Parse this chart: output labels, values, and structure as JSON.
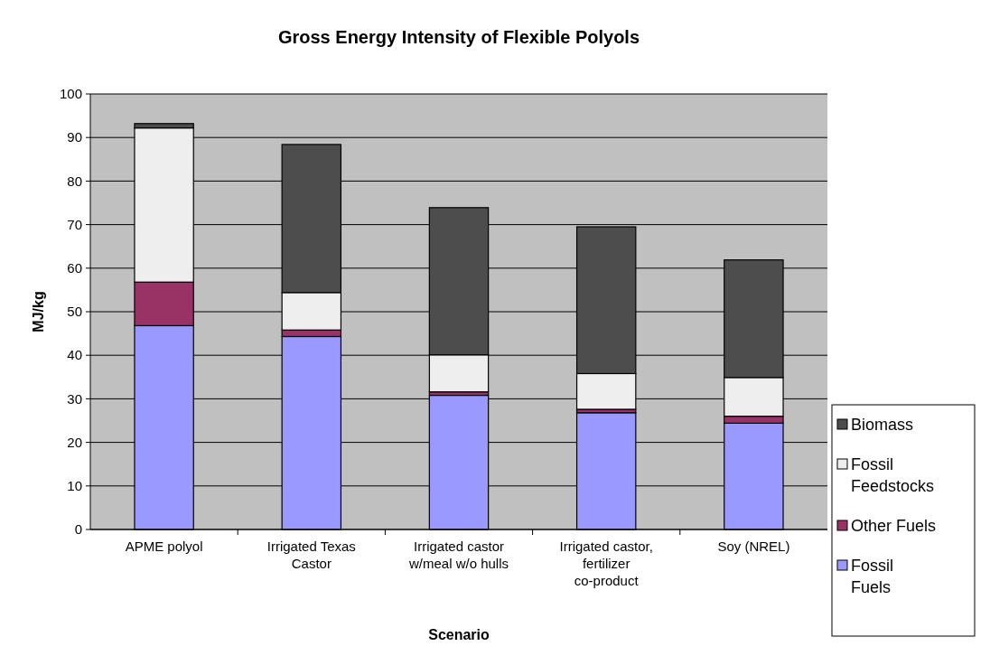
{
  "chart_data": {
    "type": "bar",
    "title": "Gross Energy Intensity of Flexible Polyols",
    "xlabel": "Scenario",
    "ylabel": "MJ/kg",
    "categories": [
      "APME polyol",
      "Irrigated Texas Castor",
      "Irrigated castor w/meal w/o hulls",
      "Irrigated castor, fertilizer co-product",
      "Soy (NREL)"
    ],
    "stacked": true,
    "series": [
      {
        "name": "Fossil Fuels",
        "color": "#9999ff",
        "values": [
          46.8,
          44.3,
          30.8,
          26.8,
          24.4
        ]
      },
      {
        "name": "Other Fuels",
        "color": "#993366",
        "values": [
          10,
          1.5,
          0.8,
          0.8,
          1.6
        ]
      },
      {
        "name": "Fossil Feedstocks",
        "color": "#eeeeee",
        "values": [
          35.4,
          8.6,
          8.5,
          8.2,
          8.9
        ]
      },
      {
        "name": "Biomass",
        "color": "#4d4d4d",
        "values": [
          1,
          34,
          33.8,
          33.7,
          27
        ]
      }
    ],
    "ylim": [
      0,
      100
    ],
    "yticks": [
      0,
      10,
      20,
      30,
      40,
      50,
      60,
      70,
      80,
      90,
      100
    ],
    "grid": "y",
    "legend": "right"
  }
}
